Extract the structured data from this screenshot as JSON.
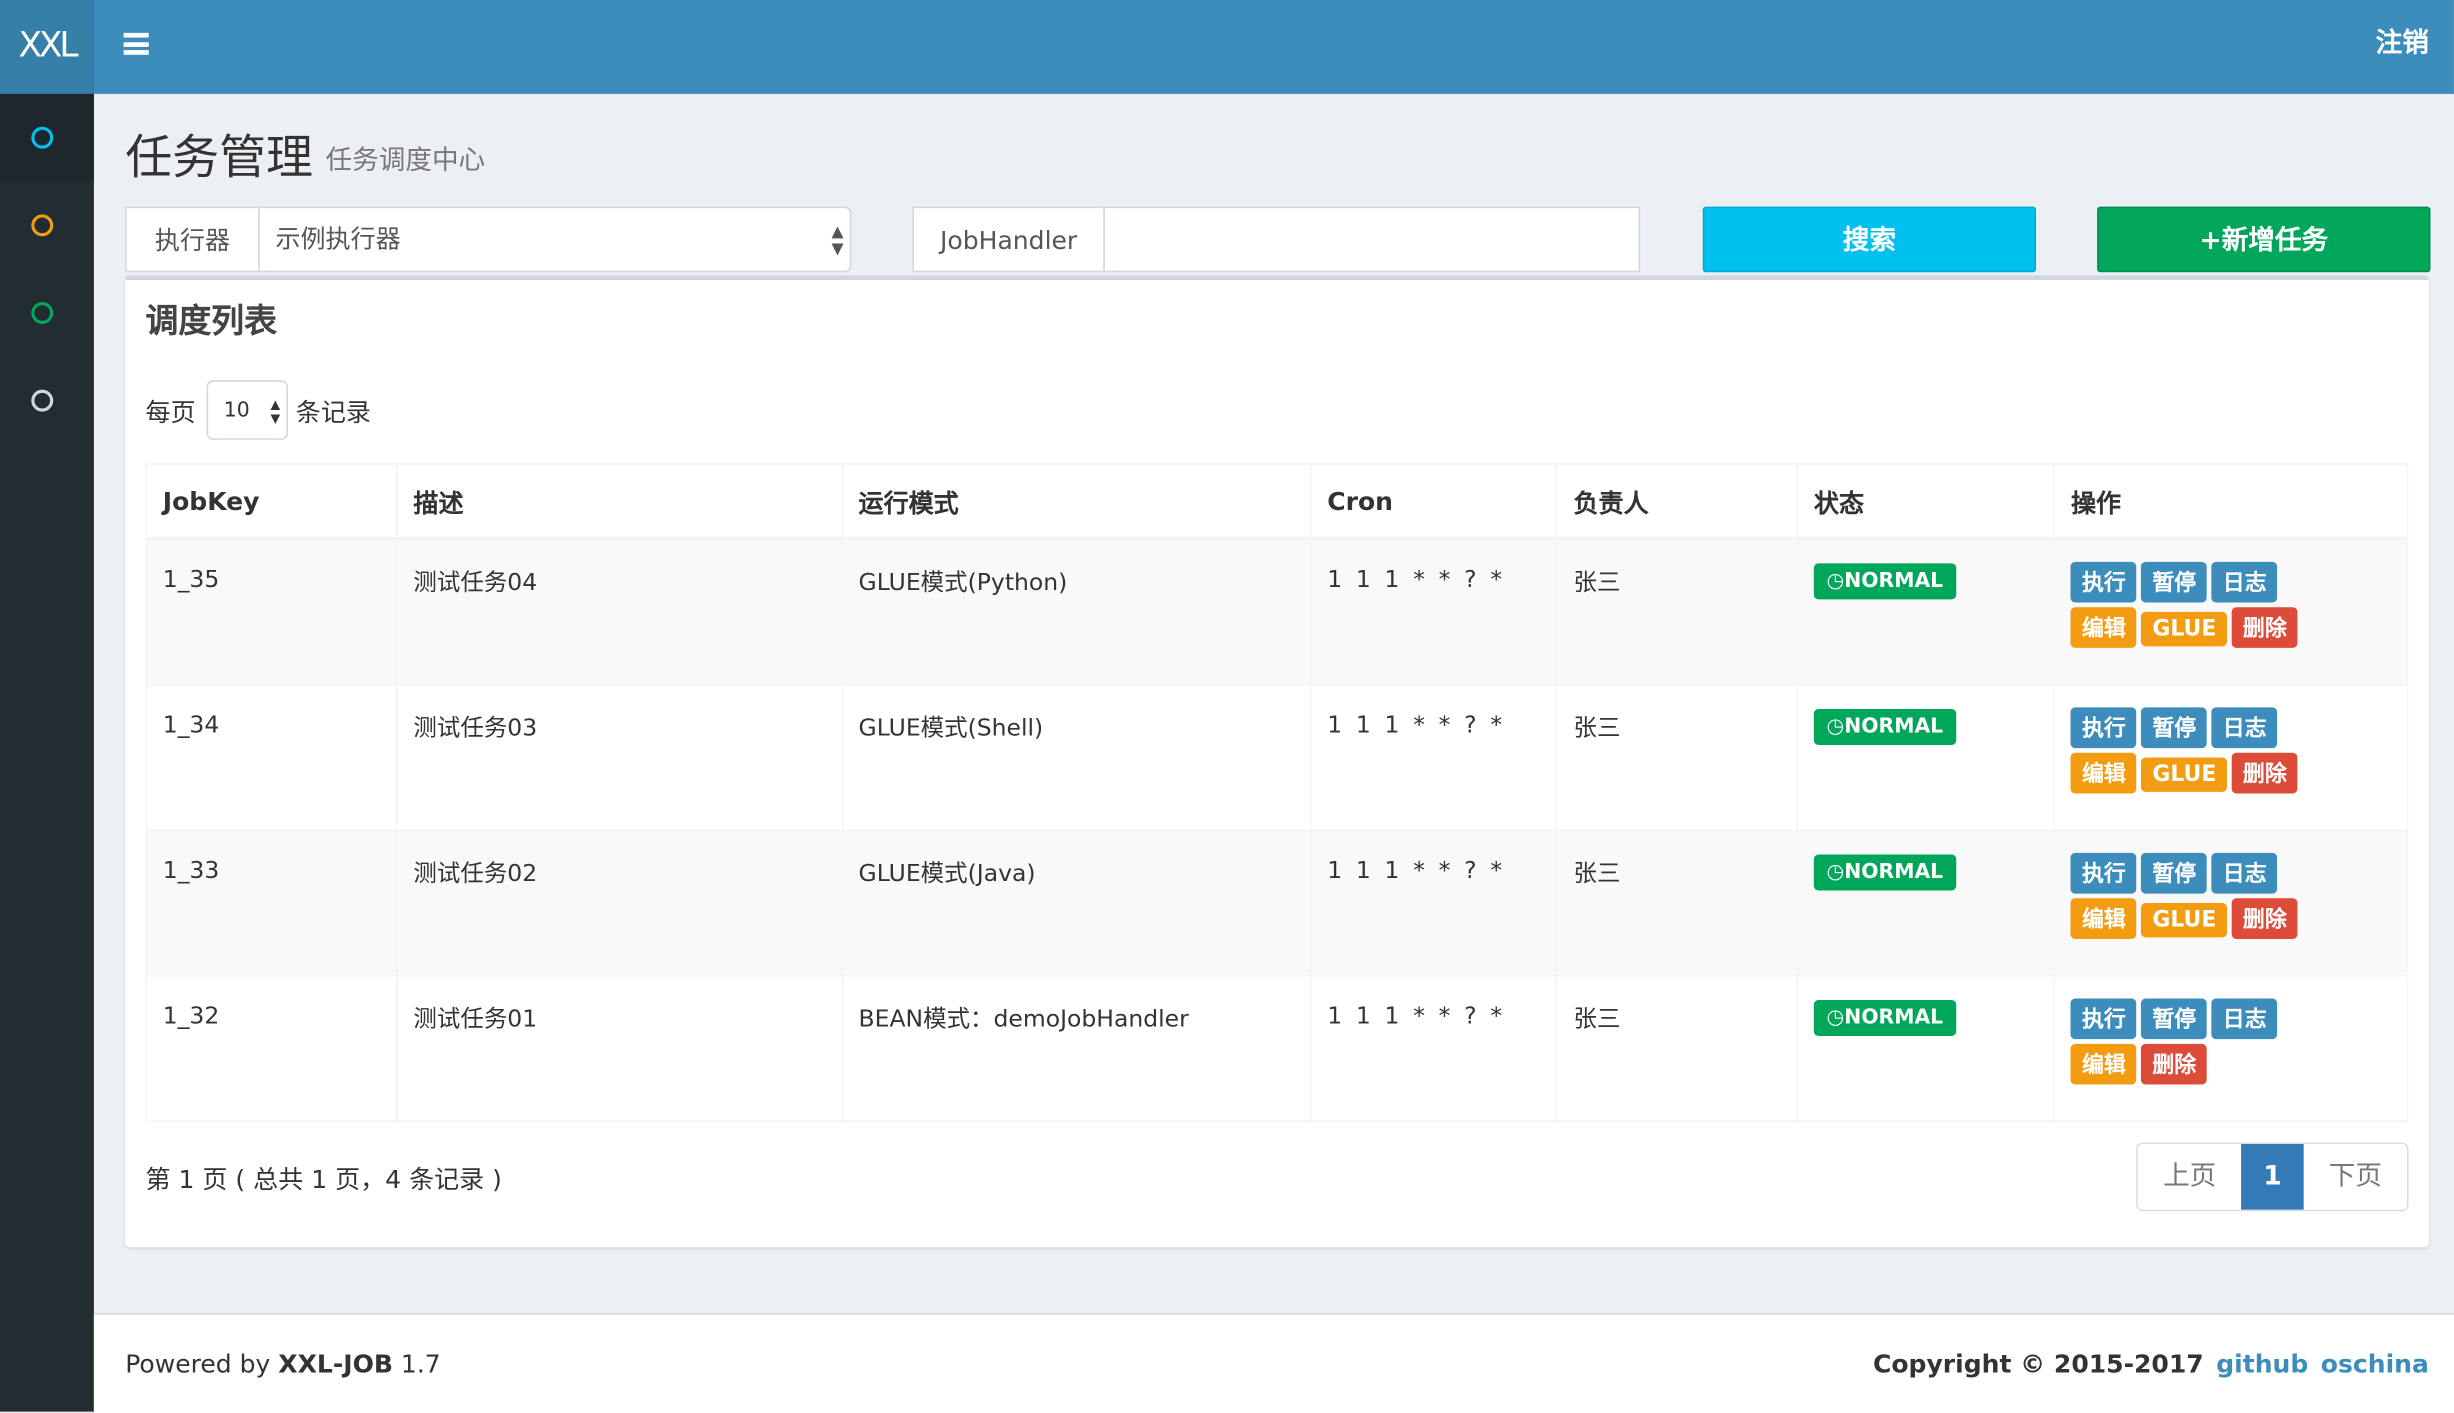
{
  "app": {
    "logo": "XXL",
    "logout": "注销"
  },
  "sidebar": {
    "items": [
      {
        "icon": "circle-icon",
        "color": "#00c0ef"
      },
      {
        "icon": "circle-icon",
        "color": "#f39c12"
      },
      {
        "icon": "circle-icon",
        "color": "#00a65a"
      },
      {
        "icon": "circle-icon",
        "color": "#d2d6de"
      }
    ]
  },
  "page": {
    "title": "任务管理",
    "subtitle": "任务调度中心"
  },
  "filters": {
    "executor_label": "执行器",
    "executor_value": "示例执行器",
    "jobhandler_label": "JobHandler",
    "jobhandler_value": "",
    "search": "搜索",
    "add": "+新增任务"
  },
  "box": {
    "title": "调度列表",
    "per_page_prefix": "每页",
    "per_page_value": "10",
    "per_page_suffix": "条记录"
  },
  "table": {
    "headers": [
      "JobKey",
      "描述",
      "运行模式",
      "Cron",
      "负责人",
      "状态",
      "操作"
    ],
    "rows": [
      {
        "key": "1_35",
        "desc": "测试任务04",
        "mode": "GLUE模式(Python)",
        "cron": "1 1 1 * * ? *",
        "owner": "张三",
        "status": "NORMAL",
        "glue": true
      },
      {
        "key": "1_34",
        "desc": "测试任务03",
        "mode": "GLUE模式(Shell)",
        "cron": "1 1 1 * * ? *",
        "owner": "张三",
        "status": "NORMAL",
        "glue": true
      },
      {
        "key": "1_33",
        "desc": "测试任务02",
        "mode": "GLUE模式(Java)",
        "cron": "1 1 1 * * ? *",
        "owner": "张三",
        "status": "NORMAL",
        "glue": true
      },
      {
        "key": "1_32",
        "desc": "测试任务01",
        "mode": "BEAN模式：demoJobHandler",
        "cron": "1 1 1 * * ? *",
        "owner": "张三",
        "status": "NORMAL",
        "glue": false
      }
    ],
    "actions": {
      "run": "执行",
      "pause": "暂停",
      "log": "日志",
      "edit": "编辑",
      "glue": "GLUE",
      "delete": "删除"
    }
  },
  "pagination": {
    "info": "第 1 页 ( 总共 1 页，4 条记录 )",
    "prev": "上页",
    "current": "1",
    "next": "下页"
  },
  "footer": {
    "powered_prefix": "Powered by ",
    "powered_name": "XXL-JOB",
    "version": " 1.7",
    "copyright": "Copyright © 2015-2017",
    "github": "github",
    "oschina": "oschina"
  },
  "colors": {
    "header": "#3c8dbc",
    "sidebar": "#222d32",
    "search": "#00c0ef",
    "add": "#00a65a"
  }
}
